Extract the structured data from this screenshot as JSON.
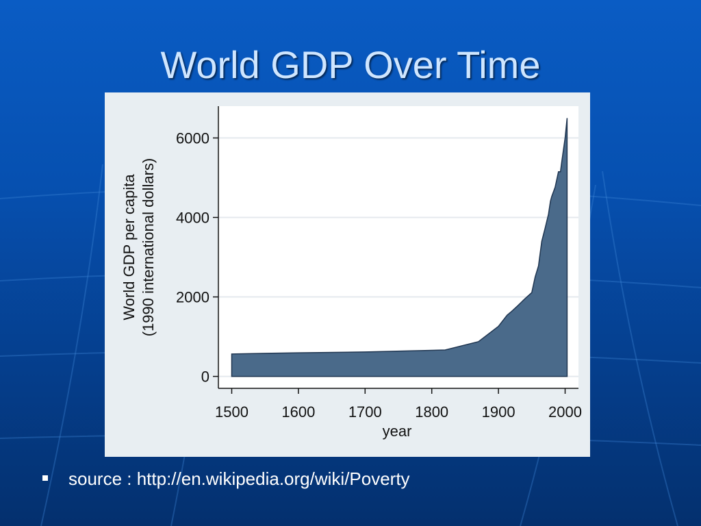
{
  "slide": {
    "title": "World GDP Over Time",
    "source_label": "source : http://en.wikipedia.org/wiki/Poverty",
    "bullet_icon": "square-bullet-icon"
  },
  "colors": {
    "background": "#0650b0",
    "title": "#cfe6ff",
    "area_fill": "#4a6a8a",
    "panel": "#e8eef2",
    "plot": "#ffffff"
  },
  "chart_data": {
    "type": "area",
    "title": "",
    "xlabel": "year",
    "ylabel": "World GDP per capita",
    "ylabel_line2": "(1990 international dollars)",
    "xlim": [
      1480,
      2020
    ],
    "ylim": [
      -300,
      6800
    ],
    "xticks": [
      1500,
      1600,
      1700,
      1800,
      1900,
      2000
    ],
    "yticks": [
      0,
      2000,
      4000,
      6000
    ],
    "grid": true,
    "x": [
      1500,
      1600,
      1700,
      1820,
      1870,
      1900,
      1913,
      1920,
      1929,
      1940,
      1950,
      1955,
      1960,
      1965,
      1970,
      1975,
      1978,
      1980,
      1985,
      1990,
      1993,
      1995,
      2000,
      2003
    ],
    "values": [
      565,
      595,
      615,
      665,
      875,
      1260,
      1540,
      1640,
      1780,
      1960,
      2110,
      2500,
      2780,
      3400,
      3730,
      4080,
      4410,
      4530,
      4760,
      5150,
      5150,
      5400,
      6000,
      6500
    ]
  }
}
